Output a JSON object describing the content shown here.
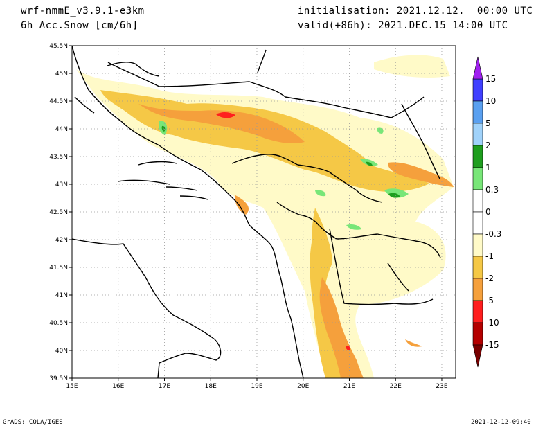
{
  "header": {
    "model": "wrf-nmmE_v3.9.1-e3km",
    "variable": "6h Acc.Snow [cm/6h]",
    "init": "initialisation: 2021.12.12.  00:00 UTC",
    "valid": "valid(+86h): 2021.DEC.15 14:00 UTC"
  },
  "footer": {
    "left": "GrADS: COLA/IGES",
    "right": "2021-12-12-09:40"
  },
  "map": {
    "lat_labels": [
      "45.5N",
      "45N",
      "44.5N",
      "44N",
      "43.5N",
      "43N",
      "42.5N",
      "42N",
      "41.5N",
      "41N",
      "40.5N",
      "40N",
      "39.5N"
    ],
    "lon_labels": [
      "15E",
      "16E",
      "17E",
      "18E",
      "19E",
      "20E",
      "21E",
      "22E",
      "23E"
    ],
    "lat_range": [
      39.5,
      45.5
    ],
    "lon_range": [
      15,
      23.3
    ],
    "grid": "dotted",
    "coastline_color": "#000000"
  },
  "colorbar": {
    "labels": [
      "15",
      "10",
      "5",
      "2",
      "1",
      "0.3",
      "0",
      "-0.3",
      "-1",
      "-2",
      "-5",
      "-10",
      "-15"
    ],
    "colors": [
      "#4040ff",
      "#5aa0f0",
      "#a0d2fa",
      "#1e9e1e",
      "#78e678",
      "#ffffff",
      "#ffffff",
      "#fffac8",
      "#f5c846",
      "#f5a03c",
      "#ff1e1e",
      "#b40000"
    ],
    "top_color": "#a020f0",
    "bottom_color": "#780000"
  },
  "snow_colors": {
    "light": "#fffac8",
    "mid": "#f5c846",
    "heavy": "#f5a03c",
    "extreme": "#ff1e1e",
    "green_light": "#78e678",
    "green_dark": "#1e9e1e"
  }
}
